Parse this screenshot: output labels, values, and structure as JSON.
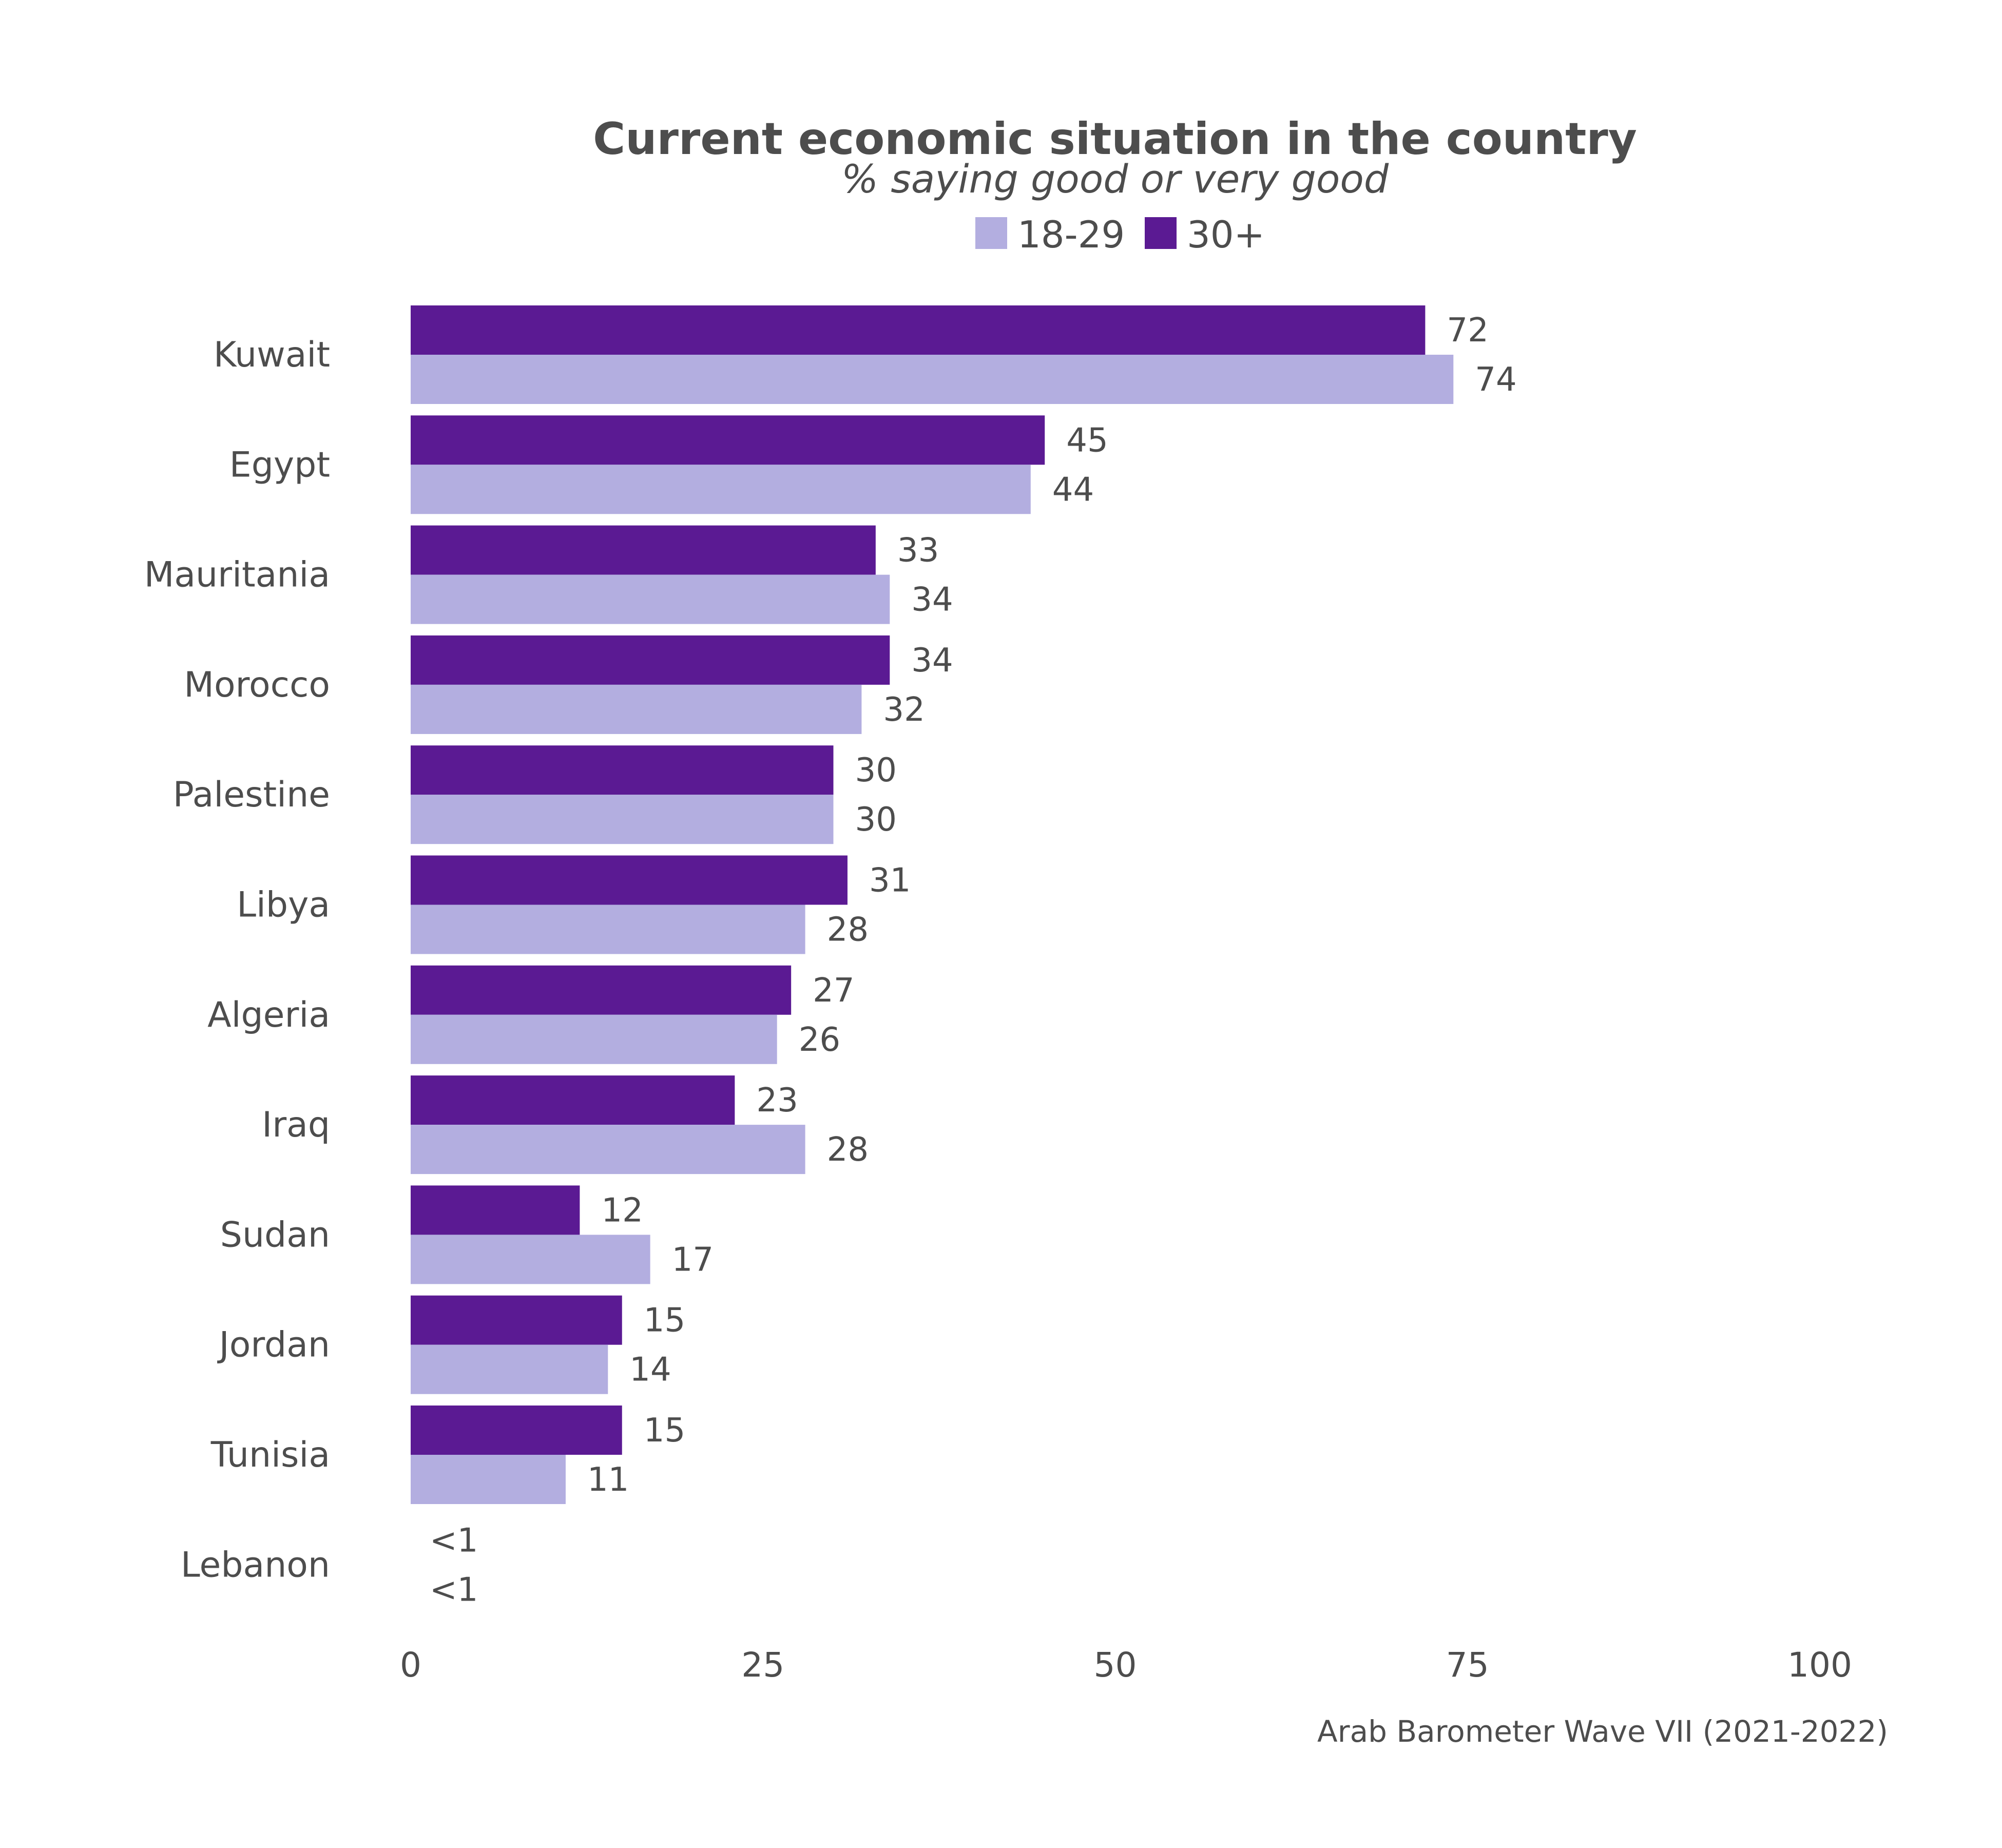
{
  "chart_data": {
    "type": "bar",
    "orientation": "horizontal",
    "title": "Current economic situation in the country",
    "subtitle": "% saying good or very good",
    "source": "Arab Barometer Wave VII (2021-2022)",
    "categories": [
      "Kuwait",
      "Egypt",
      "Mauritania",
      "Morocco",
      "Palestine",
      "Libya",
      "Algeria",
      "Iraq",
      "Sudan",
      "Jordan",
      "Tunisia",
      "Lebanon"
    ],
    "series": [
      {
        "name": "30+",
        "color": "#5b1a93",
        "values": [
          72,
          45,
          33,
          34,
          30,
          31,
          27,
          23,
          12,
          15,
          15,
          0
        ],
        "labels": [
          "72",
          "45",
          "33",
          "34",
          "30",
          "31",
          "27",
          "23",
          "12",
          "15",
          "15",
          "<1"
        ]
      },
      {
        "name": "18-29",
        "color": "#b3aee0",
        "values": [
          74,
          44,
          34,
          32,
          30,
          28,
          26,
          28,
          17,
          14,
          11,
          0
        ],
        "labels": [
          "74",
          "44",
          "34",
          "32",
          "30",
          "28",
          "26",
          "28",
          "17",
          "14",
          "11",
          "<1"
        ]
      }
    ],
    "legend": {
      "position": "top",
      "items": [
        {
          "name": "18-29",
          "color": "#b3aee0"
        },
        {
          "name": "30+",
          "color": "#5b1a93"
        }
      ]
    },
    "xlim": [
      0,
      100
    ],
    "xticks": [
      "0",
      "25",
      "50",
      "75",
      "100"
    ],
    "grid": false
  }
}
